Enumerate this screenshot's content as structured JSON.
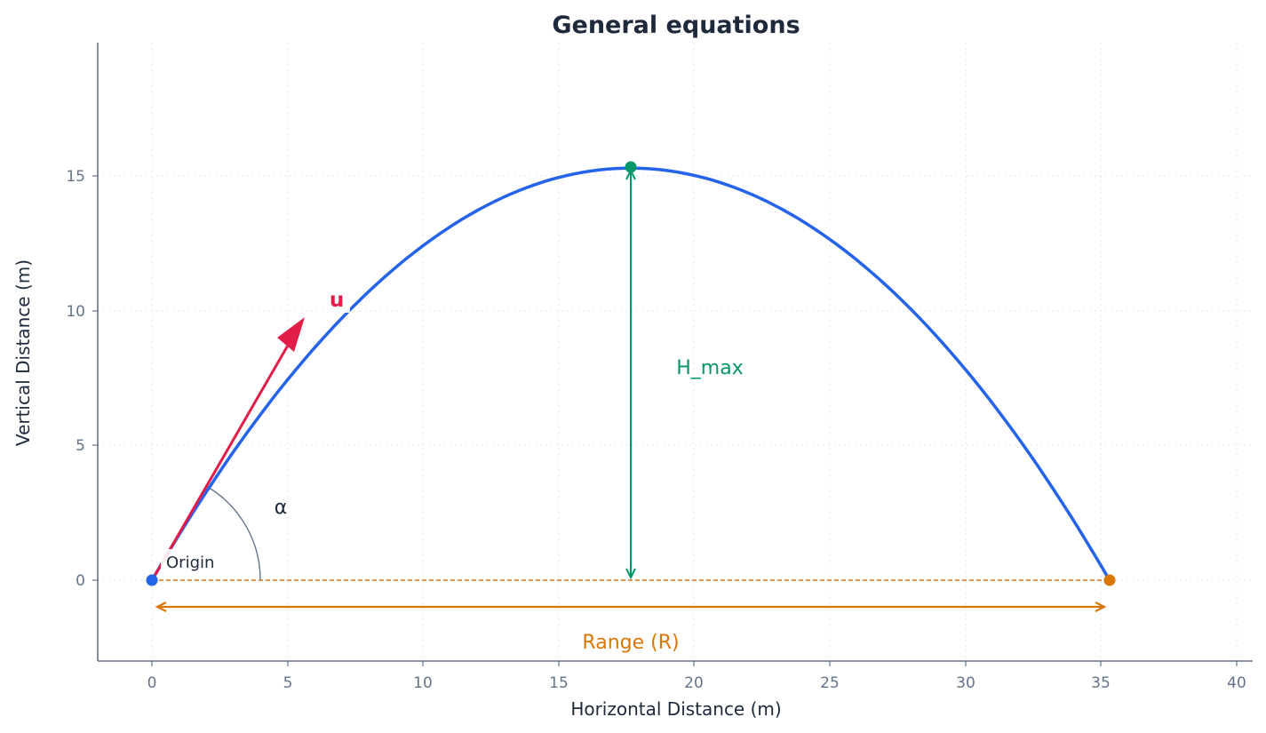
{
  "chart_data": {
    "type": "line",
    "title": "General equations",
    "xlabel": "Horizontal Distance (m)",
    "ylabel": "Vertical Distance (m)",
    "xlim": [
      -2,
      40.6
    ],
    "ylim": [
      -3,
      19.9
    ],
    "x_ticks": [
      "0",
      "5",
      "10",
      "15",
      "20",
      "25",
      "30",
      "35",
      "40"
    ],
    "y_ticks": [
      "0",
      "5",
      "10",
      "15"
    ],
    "grid": true,
    "series": [
      {
        "name": "trajectory",
        "color": "#2563eb",
        "launch_speed": 20,
        "launch_angle_deg": 60,
        "g": 9.81,
        "x": [
          0,
          3.53,
          7.06,
          10.59,
          14.12,
          17.65,
          21.18,
          24.71,
          28.24,
          31.77,
          35.3
        ],
        "y": [
          0,
          5.5,
          9.79,
          12.84,
          14.68,
          15.29,
          14.68,
          12.84,
          9.79,
          5.5,
          0
        ]
      }
    ],
    "points": [
      {
        "name": "origin",
        "x": 0,
        "y": 0,
        "color": "#2563eb"
      },
      {
        "name": "apex",
        "x": 17.65,
        "y": 15.29,
        "color": "#059669"
      },
      {
        "name": "landing",
        "x": 35.3,
        "y": 0,
        "color": "#d97706"
      }
    ],
    "annotations": [
      {
        "text": "u",
        "x": 6.9,
        "y": 10.2,
        "color": "#e11d48"
      },
      {
        "text": "α",
        "x": 4.7,
        "y": 2.7,
        "color": "#1e293b"
      },
      {
        "text": "Origin",
        "x": 1.5,
        "y": 0.7,
        "color": "#1e293b"
      },
      {
        "text": "H_max",
        "x": 20.5,
        "y": 7.9,
        "color": "#059669"
      },
      {
        "text": "Range (R)",
        "x": 17.65,
        "y": -2.2,
        "color": "#d97706"
      }
    ],
    "velocity_vector": {
      "from": [
        0,
        0
      ],
      "to": [
        5.6,
        9.7
      ],
      "color": "#e11d48"
    },
    "hmax_arrow": {
      "x": 17.65,
      "from_y": 0,
      "to_y": 15.29,
      "color": "#059669"
    },
    "range_arrow": {
      "y": -1,
      "from_x": 0,
      "to_x": 35.3,
      "color": "#d97706"
    },
    "baseline": {
      "y": 0,
      "from_x": 0,
      "to_x": 35.3,
      "style": "dashed",
      "color": "#d97706"
    }
  },
  "labels": {
    "title": "General equations",
    "xlabel": "Horizontal Distance (m)",
    "ylabel": "Vertical Distance (m)",
    "u": "u",
    "alpha": "α",
    "origin": "Origin",
    "hmax": "H_max",
    "range": "Range (R)",
    "xticks": [
      "0",
      "5",
      "10",
      "15",
      "20",
      "25",
      "30",
      "35",
      "40"
    ],
    "yticks": [
      "0",
      "5",
      "10",
      "15"
    ]
  }
}
